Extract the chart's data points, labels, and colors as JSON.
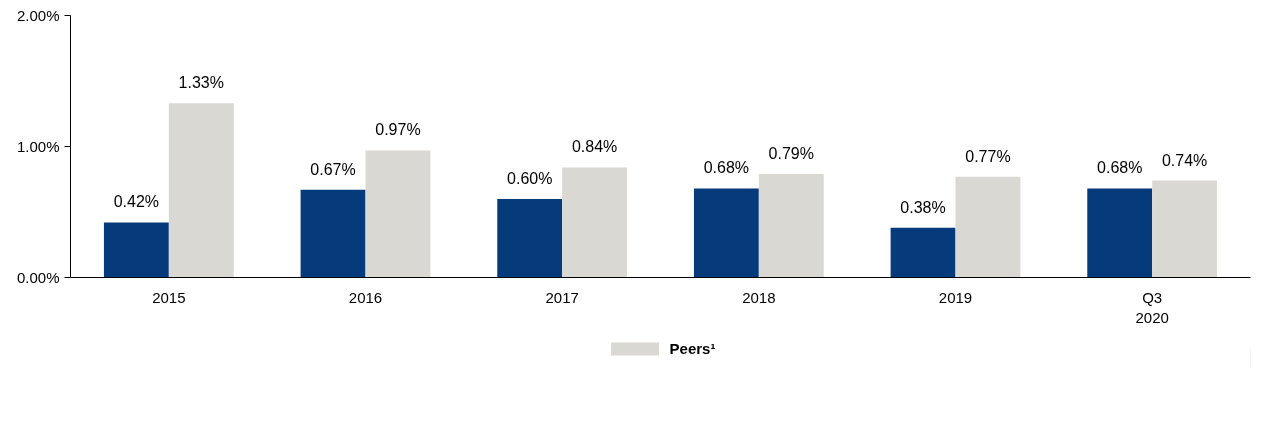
{
  "chart_data": {
    "type": "bar",
    "categories": [
      "2015",
      "2016",
      "2017",
      "2018",
      "2019",
      "Q3\n2020"
    ],
    "series": [
      {
        "color": "#063b7b",
        "values": [
          0.42,
          0.67,
          0.6,
          0.68,
          0.38,
          0.68
        ],
        "value_labels": [
          "0.42%",
          "0.67%",
          "0.60%",
          "0.68%",
          "0.38%",
          "0.68%"
        ]
      },
      {
        "name": "Peers¹",
        "color": "#dad8d3",
        "values": [
          1.33,
          0.97,
          0.84,
          0.79,
          0.77,
          0.74
        ],
        "value_labels": [
          "1.33%",
          "0.97%",
          "0.84%",
          "0.79%",
          "0.77%",
          "0.74%"
        ]
      }
    ],
    "ylim": [
      0,
      2
    ],
    "yticks": [
      {
        "value": 0,
        "label": "0.00%"
      },
      {
        "value": 1,
        "label": "1.00%"
      },
      {
        "value": 2,
        "label": "2.00%"
      }
    ],
    "grid": false,
    "legend": "bottom"
  }
}
